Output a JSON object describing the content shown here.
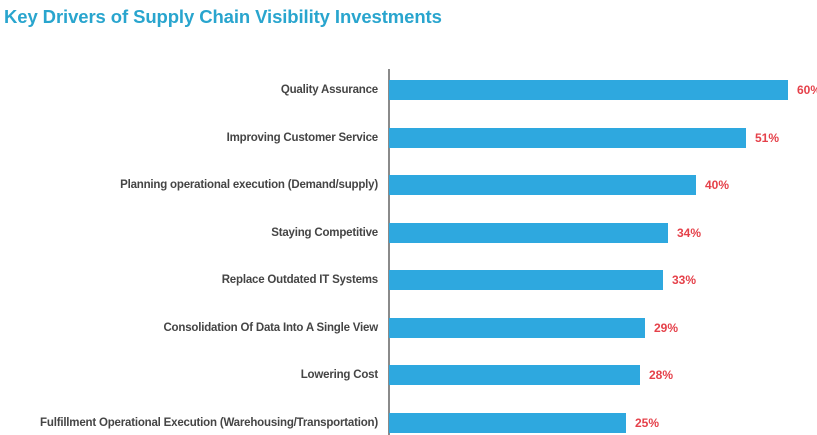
{
  "header": {
    "title": "Key Drivers of Supply Chain Visibility Investments",
    "title_color": "#29A5CE"
  },
  "chart_data": {
    "type": "bar",
    "orientation": "horizontal",
    "title": "Key Drivers of Supply Chain Visibility Investments",
    "categories": [
      "Quality Assurance",
      "Improving Customer Service",
      "Planning operational execution (Demand/supply)",
      "Staying Competitive",
      "Replace Outdated IT Systems",
      "Consolidation Of Data Into A Single View",
      "Lowering Cost",
      "Fulfillment Operational Execution (Warehousing/Transportation)"
    ],
    "values": [
      60,
      51,
      40,
      34,
      33,
      29,
      28,
      25
    ],
    "value_suffix": "%",
    "value_labels": [
      "60%",
      "51%",
      "40%",
      "34%",
      "33%",
      "29%",
      "28%",
      "25%"
    ],
    "value_labels_position": "end-of-bar",
    "xlabel": "",
    "ylabel": "",
    "xlim": [
      0,
      65
    ],
    "grid": false,
    "legend": false,
    "colors": {
      "bar": "#2EA8DF",
      "value_label": "#E5414A",
      "category_label": "#454545",
      "axis_line": "#8A8A8A",
      "background": "#FFFFFF"
    }
  }
}
